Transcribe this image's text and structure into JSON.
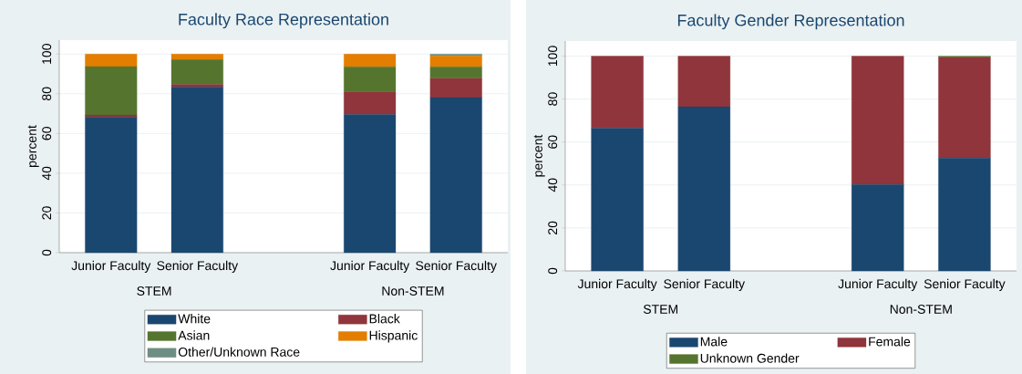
{
  "chart_data": [
    {
      "type": "bar",
      "title": "Faculty Race Representation",
      "ylabel": "percent",
      "stacked": true,
      "grid": "y",
      "legend": "bottom",
      "categories": [
        "Junior Faculty",
        "Senior Faculty",
        null,
        "Junior Faculty",
        "Senior Faculty"
      ],
      "ylim": [
        0,
        107
      ],
      "yticks": [
        0,
        20,
        40,
        60,
        80,
        100
      ],
      "annotations": [
        "STEM",
        "Non-STEM"
      ],
      "series": [
        {
          "name": "White",
          "color": "#1a476f",
          "values": [
            68.3,
            83.5,
            null,
            69.6,
            78.1
          ]
        },
        {
          "name": "Black",
          "color": "#90353b",
          "values": [
            1.1,
            1.2,
            null,
            11.4,
            9.7
          ]
        },
        {
          "name": "Asian",
          "color": "#55752f",
          "values": [
            24.3,
            12.5,
            null,
            12.6,
            5.8
          ]
        },
        {
          "name": "Hispanic",
          "color": "#e37e00",
          "values": [
            6.3,
            2.8,
            null,
            6.4,
            5.5
          ]
        },
        {
          "name": "Other/Unknown Race",
          "color": "#6e8e84",
          "values": [
            0,
            0,
            null,
            0,
            0.9
          ]
        }
      ]
    },
    {
      "type": "bar",
      "title": "Faculty Gender Representation",
      "ylabel": "percent",
      "stacked": true,
      "grid": "y",
      "legend": "bottom",
      "categories": [
        "Junior Faculty",
        "Senior Faculty",
        null,
        "Junior Faculty",
        "Senior Faculty"
      ],
      "ylim": [
        0,
        107
      ],
      "yticks": [
        0,
        20,
        40,
        60,
        80,
        100
      ],
      "annotations": [
        "STEM",
        "Non-STEM"
      ],
      "series": [
        {
          "name": "Male",
          "color": "#1a476f",
          "values": [
            66.4,
            76.4,
            null,
            40.2,
            52.5
          ]
        },
        {
          "name": "Female",
          "color": "#90353b",
          "values": [
            33.6,
            23.6,
            null,
            59.8,
            47.0
          ]
        },
        {
          "name": "Unknown Gender",
          "color": "#55752f",
          "values": [
            0,
            0,
            null,
            0,
            0.5
          ]
        }
      ]
    }
  ]
}
